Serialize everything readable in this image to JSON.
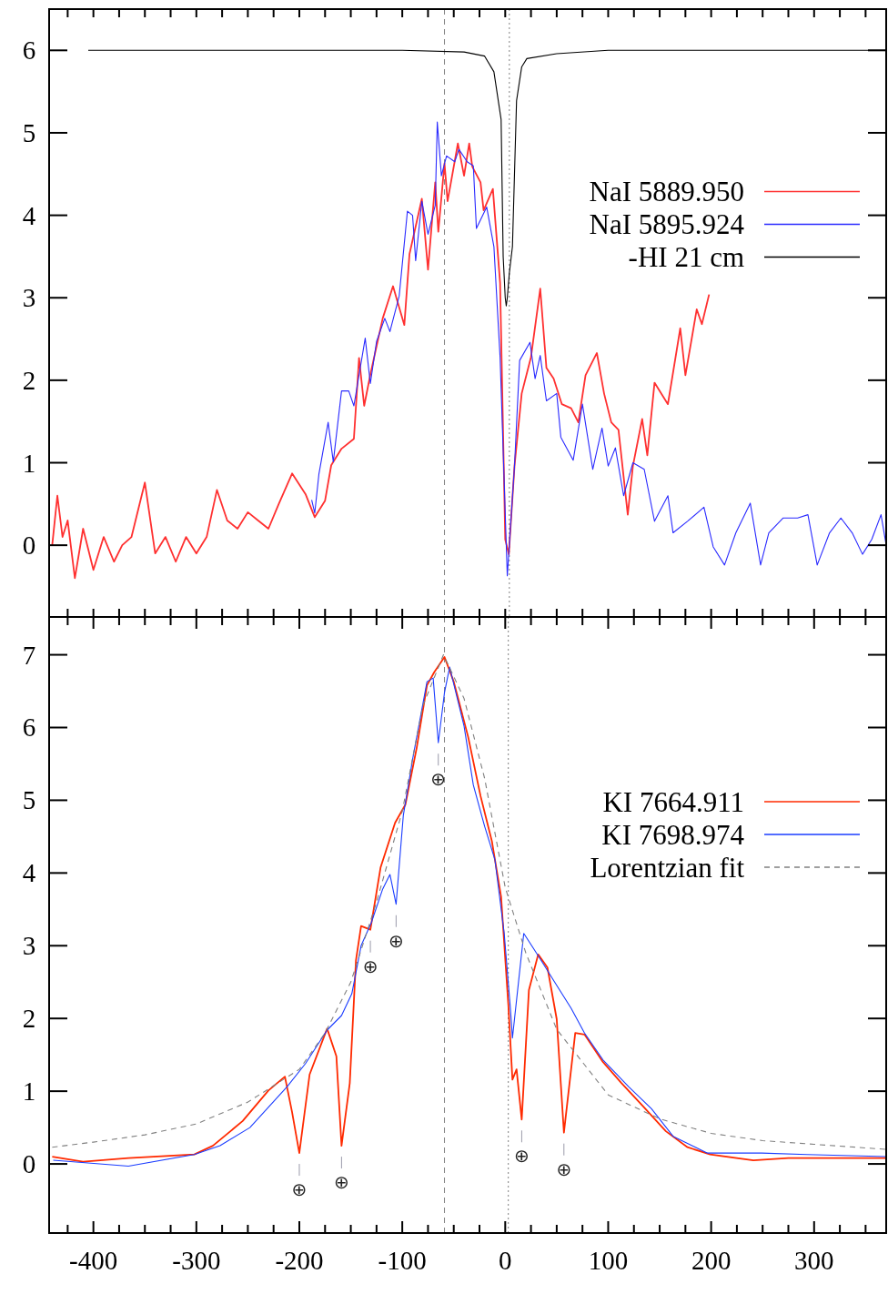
{
  "chart_data": [
    {
      "type": "line",
      "xlim": [
        -443,
        370
      ],
      "ylim": [
        -0.87,
        6.5
      ],
      "tick_labels": "y",
      "legend": "right",
      "grid": false,
      "xticks": [
        {
          "value": -425,
          "label": null
        },
        {
          "value": -400,
          "label": null
        },
        {
          "value": -375,
          "label": null
        },
        {
          "value": -350,
          "label": null
        },
        {
          "value": -325,
          "label": null
        },
        {
          "value": -300,
          "label": null
        },
        {
          "value": -275,
          "label": null
        },
        {
          "value": -250,
          "label": null
        },
        {
          "value": -225,
          "label": null
        },
        {
          "value": -200,
          "label": null
        },
        {
          "value": -175,
          "label": null
        },
        {
          "value": -150,
          "label": null
        },
        {
          "value": -125,
          "label": null
        },
        {
          "value": -100,
          "label": null
        },
        {
          "value": -75,
          "label": null
        },
        {
          "value": -50,
          "label": null
        },
        {
          "value": -25,
          "label": null
        },
        {
          "value": 0,
          "label": null
        },
        {
          "value": 25,
          "label": null
        },
        {
          "value": 50,
          "label": null
        },
        {
          "value": 75,
          "label": null
        },
        {
          "value": 100,
          "label": null
        },
        {
          "value": 125,
          "label": null
        },
        {
          "value": 150,
          "label": null
        },
        {
          "value": 175,
          "label": null
        },
        {
          "value": 200,
          "label": null
        },
        {
          "value": 225,
          "label": null
        },
        {
          "value": 250,
          "label": null
        },
        {
          "value": 275,
          "label": null
        },
        {
          "value": 300,
          "label": null
        },
        {
          "value": 325,
          "label": null
        },
        {
          "value": 350,
          "label": null
        }
      ],
      "yticks": [
        0,
        1,
        2,
        3,
        4,
        5,
        6
      ],
      "ref_lines": [
        {
          "axis": "x",
          "value": -59,
          "color": "#808080",
          "line_style": "dashed"
        },
        {
          "axis": "x",
          "value": 4,
          "color": "#808080",
          "line_style": "dotted"
        }
      ],
      "series": [
        {
          "name": "NaI 5889.950",
          "color": "#ff3030",
          "line_style": "solid",
          "x": [
            -440,
            -435,
            -430,
            -425,
            -418,
            -410,
            -400,
            -390,
            -380,
            -372,
            -363,
            -350,
            -340,
            -330,
            -320,
            -310,
            -300,
            -290,
            -280,
            -270,
            -260,
            -250,
            -240,
            -230,
            -220,
            -207,
            -194,
            -185,
            -175,
            -169,
            -159,
            -147,
            -142,
            -137,
            -131,
            -119,
            -109,
            -98,
            -93,
            -81,
            -75,
            -68,
            -65,
            -59,
            -56,
            -46,
            -40,
            -35,
            -32,
            -24,
            -21,
            -12,
            -5,
            0,
            3.5,
            9,
            16,
            25,
            34,
            40,
            47,
            55,
            64,
            71,
            78,
            89,
            96,
            103,
            110,
            119,
            124,
            133,
            138,
            145,
            158,
            170,
            175,
            186,
            191,
            198
          ],
          "values": [
            0.0,
            0.6,
            0.1,
            0.3,
            -0.4,
            0.2,
            -0.3,
            0.1,
            -0.2,
            0.0,
            0.1,
            0.76,
            -0.1,
            0.1,
            -0.2,
            0.1,
            -0.1,
            0.1,
            0.67,
            0.3,
            0.2,
            0.4,
            0.3,
            0.2,
            0.5,
            0.87,
            0.62,
            0.34,
            0.54,
            0.97,
            1.17,
            1.29,
            2.27,
            1.69,
            2.07,
            2.75,
            3.14,
            2.67,
            3.53,
            4.2,
            3.34,
            4.4,
            3.8,
            4.63,
            4.17,
            4.87,
            4.48,
            4.87,
            4.59,
            4.4,
            4.06,
            4.32,
            3.18,
            0.07,
            -0.11,
            0.96,
            1.84,
            2.28,
            3.11,
            2.15,
            2.02,
            1.71,
            1.66,
            1.49,
            2.06,
            2.33,
            1.84,
            1.49,
            1.4,
            0.37,
            0.96,
            1.53,
            1.09,
            1.97,
            1.71,
            2.63,
            2.06,
            2.86,
            2.68,
            3.04
          ]
        },
        {
          "name": "NaI 5895.924",
          "color": "#2a2aff",
          "line_style": "solid",
          "x": [
            -188,
            -185,
            -181,
            -172,
            -167,
            -159,
            -152,
            -147,
            -136,
            -131,
            -125,
            -117,
            -112,
            -103,
            -95,
            -90,
            -87,
            -81,
            -75,
            -68,
            -66,
            -62,
            -57,
            -49,
            -45,
            -37,
            -31,
            -28,
            -18,
            -11,
            -5,
            2,
            9,
            14,
            24,
            29,
            34,
            40,
            50,
            54,
            66,
            75,
            85,
            94,
            100,
            107,
            115,
            124,
            135,
            145,
            158,
            163,
            177,
            193,
            202,
            213,
            224,
            238,
            248,
            256,
            270,
            284,
            294,
            303,
            315,
            326,
            337,
            347,
            356,
            365,
            370
          ],
          "values": [
            0.55,
            0.39,
            0.86,
            1.49,
            1.01,
            1.87,
            1.87,
            1.69,
            2.51,
            1.96,
            2.47,
            2.75,
            2.59,
            3.02,
            4.05,
            4.0,
            3.45,
            4.17,
            3.77,
            4.12,
            5.13,
            4.48,
            4.72,
            4.65,
            4.8,
            4.65,
            4.6,
            3.84,
            4.1,
            3.62,
            2.28,
            -0.37,
            0.96,
            2.24,
            2.46,
            2.02,
            2.3,
            1.75,
            1.84,
            1.31,
            1.03,
            1.71,
            0.92,
            1.42,
            0.96,
            1.18,
            0.6,
            1.0,
            0.92,
            0.29,
            0.6,
            0.15,
            0.29,
            0.46,
            -0.02,
            -0.24,
            0.15,
            0.51,
            -0.24,
            0.15,
            0.33,
            0.33,
            0.37,
            -0.24,
            0.15,
            0.33,
            0.15,
            -0.11,
            0.07,
            0.37,
            0.0
          ]
        },
        {
          "name": "-HI 21 cm",
          "color": "#000000",
          "line_style": "solid",
          "x": [
            -405,
            -300,
            -200,
            -100,
            -40,
            -20,
            -11,
            -4,
            -2,
            0,
            1,
            2,
            4,
            7,
            11,
            16,
            21,
            50,
            100,
            200,
            300,
            370
          ],
          "values": [
            6.0,
            6.0,
            6.0,
            6.0,
            5.98,
            5.93,
            5.74,
            5.16,
            3.5,
            3.0,
            2.9,
            3.0,
            3.3,
            3.62,
            5.39,
            5.8,
            5.9,
            5.96,
            6.0,
            6.0,
            6.0,
            6.0
          ]
        }
      ]
    },
    {
      "type": "line",
      "xlim": [
        -443,
        370
      ],
      "ylim": [
        -0.95,
        7.52
      ],
      "legend": "right",
      "grid": false,
      "xticks": [
        {
          "value": -425,
          "label": null
        },
        -400,
        {
          "value": -375,
          "label": null
        },
        {
          "value": -350,
          "label": null
        },
        {
          "value": -325,
          "label": null
        },
        -300,
        {
          "value": -275,
          "label": null
        },
        {
          "value": -250,
          "label": null
        },
        {
          "value": -225,
          "label": null
        },
        -200,
        {
          "value": -175,
          "label": null
        },
        {
          "value": -150,
          "label": null
        },
        {
          "value": -125,
          "label": null
        },
        -100,
        {
          "value": -75,
          "label": null
        },
        {
          "value": -50,
          "label": null
        },
        {
          "value": -25,
          "label": null
        },
        0,
        {
          "value": 25,
          "label": null
        },
        {
          "value": 50,
          "label": null
        },
        {
          "value": 75,
          "label": null
        },
        100,
        {
          "value": 125,
          "label": null
        },
        {
          "value": 150,
          "label": null
        },
        {
          "value": 175,
          "label": null
        },
        200,
        {
          "value": 225,
          "label": null
        },
        {
          "value": 250,
          "label": null
        },
        {
          "value": 275,
          "label": null
        },
        300,
        {
          "value": 325,
          "label": null
        },
        {
          "value": 350,
          "label": null
        }
      ],
      "yticks": [
        0,
        1,
        2,
        3,
        4,
        5,
        6,
        7
      ],
      "ref_lines": [
        {
          "axis": "x",
          "value": -59,
          "color": "#808080",
          "line_style": "dashed"
        },
        {
          "axis": "x",
          "value": 3,
          "color": "#808080",
          "line_style": "dotted"
        }
      ],
      "annotations": [
        {
          "text": "⊕",
          "x": -200,
          "y": 0.15
        },
        {
          "text": "⊕",
          "x": -159,
          "y": 0.25
        },
        {
          "text": "⊕",
          "x": -131,
          "y": 3.22
        },
        {
          "text": "⊕",
          "x": -106,
          "y": 3.57
        },
        {
          "text": "⊕",
          "x": -65,
          "y": 5.79
        },
        {
          "text": "⊕",
          "x": 16,
          "y": 0.61
        },
        {
          "text": "⊕",
          "x": 57,
          "y": 0.43
        }
      ],
      "series": [
        {
          "name": "KI 7664.911",
          "color": "#ff2a00",
          "line_style": "solid",
          "x": [
            -440,
            -410,
            -366,
            -302,
            -284,
            -255,
            -230,
            -214,
            -207,
            -200,
            -190,
            -173,
            -164,
            -159,
            -151,
            -145,
            -140,
            -131,
            -121,
            -107,
            -97,
            -86,
            -76,
            -69,
            -59,
            -50,
            -36,
            -24,
            -13,
            -4,
            3,
            7,
            11,
            16,
            23,
            32,
            41,
            50,
            57,
            68,
            77,
            95,
            113,
            134,
            156,
            177,
            199,
            241,
            275,
            310,
            370
          ],
          "values": [
            0.1,
            0.03,
            0.08,
            0.13,
            0.25,
            0.59,
            1.01,
            1.2,
            0.71,
            0.15,
            1.23,
            1.86,
            1.48,
            0.25,
            1.11,
            2.8,
            3.27,
            3.22,
            4.08,
            4.69,
            4.94,
            5.72,
            6.58,
            6.76,
            6.97,
            6.63,
            5.87,
            5.06,
            4.44,
            3.67,
            2.19,
            1.16,
            1.3,
            0.61,
            2.39,
            2.88,
            2.7,
            1.99,
            0.43,
            1.8,
            1.78,
            1.4,
            1.11,
            0.79,
            0.45,
            0.23,
            0.13,
            0.05,
            0.08,
            0.08,
            0.08
          ]
        },
        {
          "name": "KI 7698.974",
          "color": "#1a3cff",
          "line_style": "solid",
          "x": [
            -439,
            -366,
            -302,
            -277,
            -248,
            -212,
            -194,
            -173,
            -159,
            -149,
            -140,
            -130,
            -119,
            -112,
            -106,
            -99,
            -90,
            -76,
            -70,
            -65,
            -59,
            -54,
            -40,
            -31,
            -20,
            -10,
            -1,
            5,
            7,
            18,
            28,
            37,
            48,
            64,
            77,
            95,
            120,
            142,
            163,
            196,
            249,
            293,
            370
          ],
          "values": [
            0.05,
            -0.03,
            0.13,
            0.25,
            0.5,
            1.06,
            1.38,
            1.84,
            2.04,
            2.34,
            3.0,
            3.32,
            3.78,
            3.98,
            3.57,
            4.79,
            5.56,
            6.63,
            6.68,
            5.79,
            6.48,
            6.83,
            6.02,
            5.21,
            4.64,
            4.18,
            3.17,
            2.14,
            1.73,
            3.17,
            2.95,
            2.75,
            2.5,
            2.14,
            1.8,
            1.43,
            1.06,
            0.76,
            0.38,
            0.15,
            0.15,
            0.13,
            0.1
          ]
        },
        {
          "name": "Lorentzian fit",
          "color": "#808080",
          "line_style": "dashed",
          "x": [
            -440,
            -400,
            -350,
            -300,
            -250,
            -200,
            -175,
            -150,
            -125,
            -100,
            -80,
            -60,
            -40,
            -20,
            0,
            20,
            50,
            100,
            150,
            200,
            250,
            300,
            370
          ],
          "values": [
            0.23,
            0.3,
            0.4,
            0.55,
            0.85,
            1.3,
            1.8,
            2.5,
            3.6,
            4.85,
            6.3,
            7.0,
            6.4,
            5.3,
            3.8,
            2.9,
            1.85,
            0.95,
            0.62,
            0.42,
            0.32,
            0.27,
            0.2
          ]
        }
      ]
    }
  ]
}
